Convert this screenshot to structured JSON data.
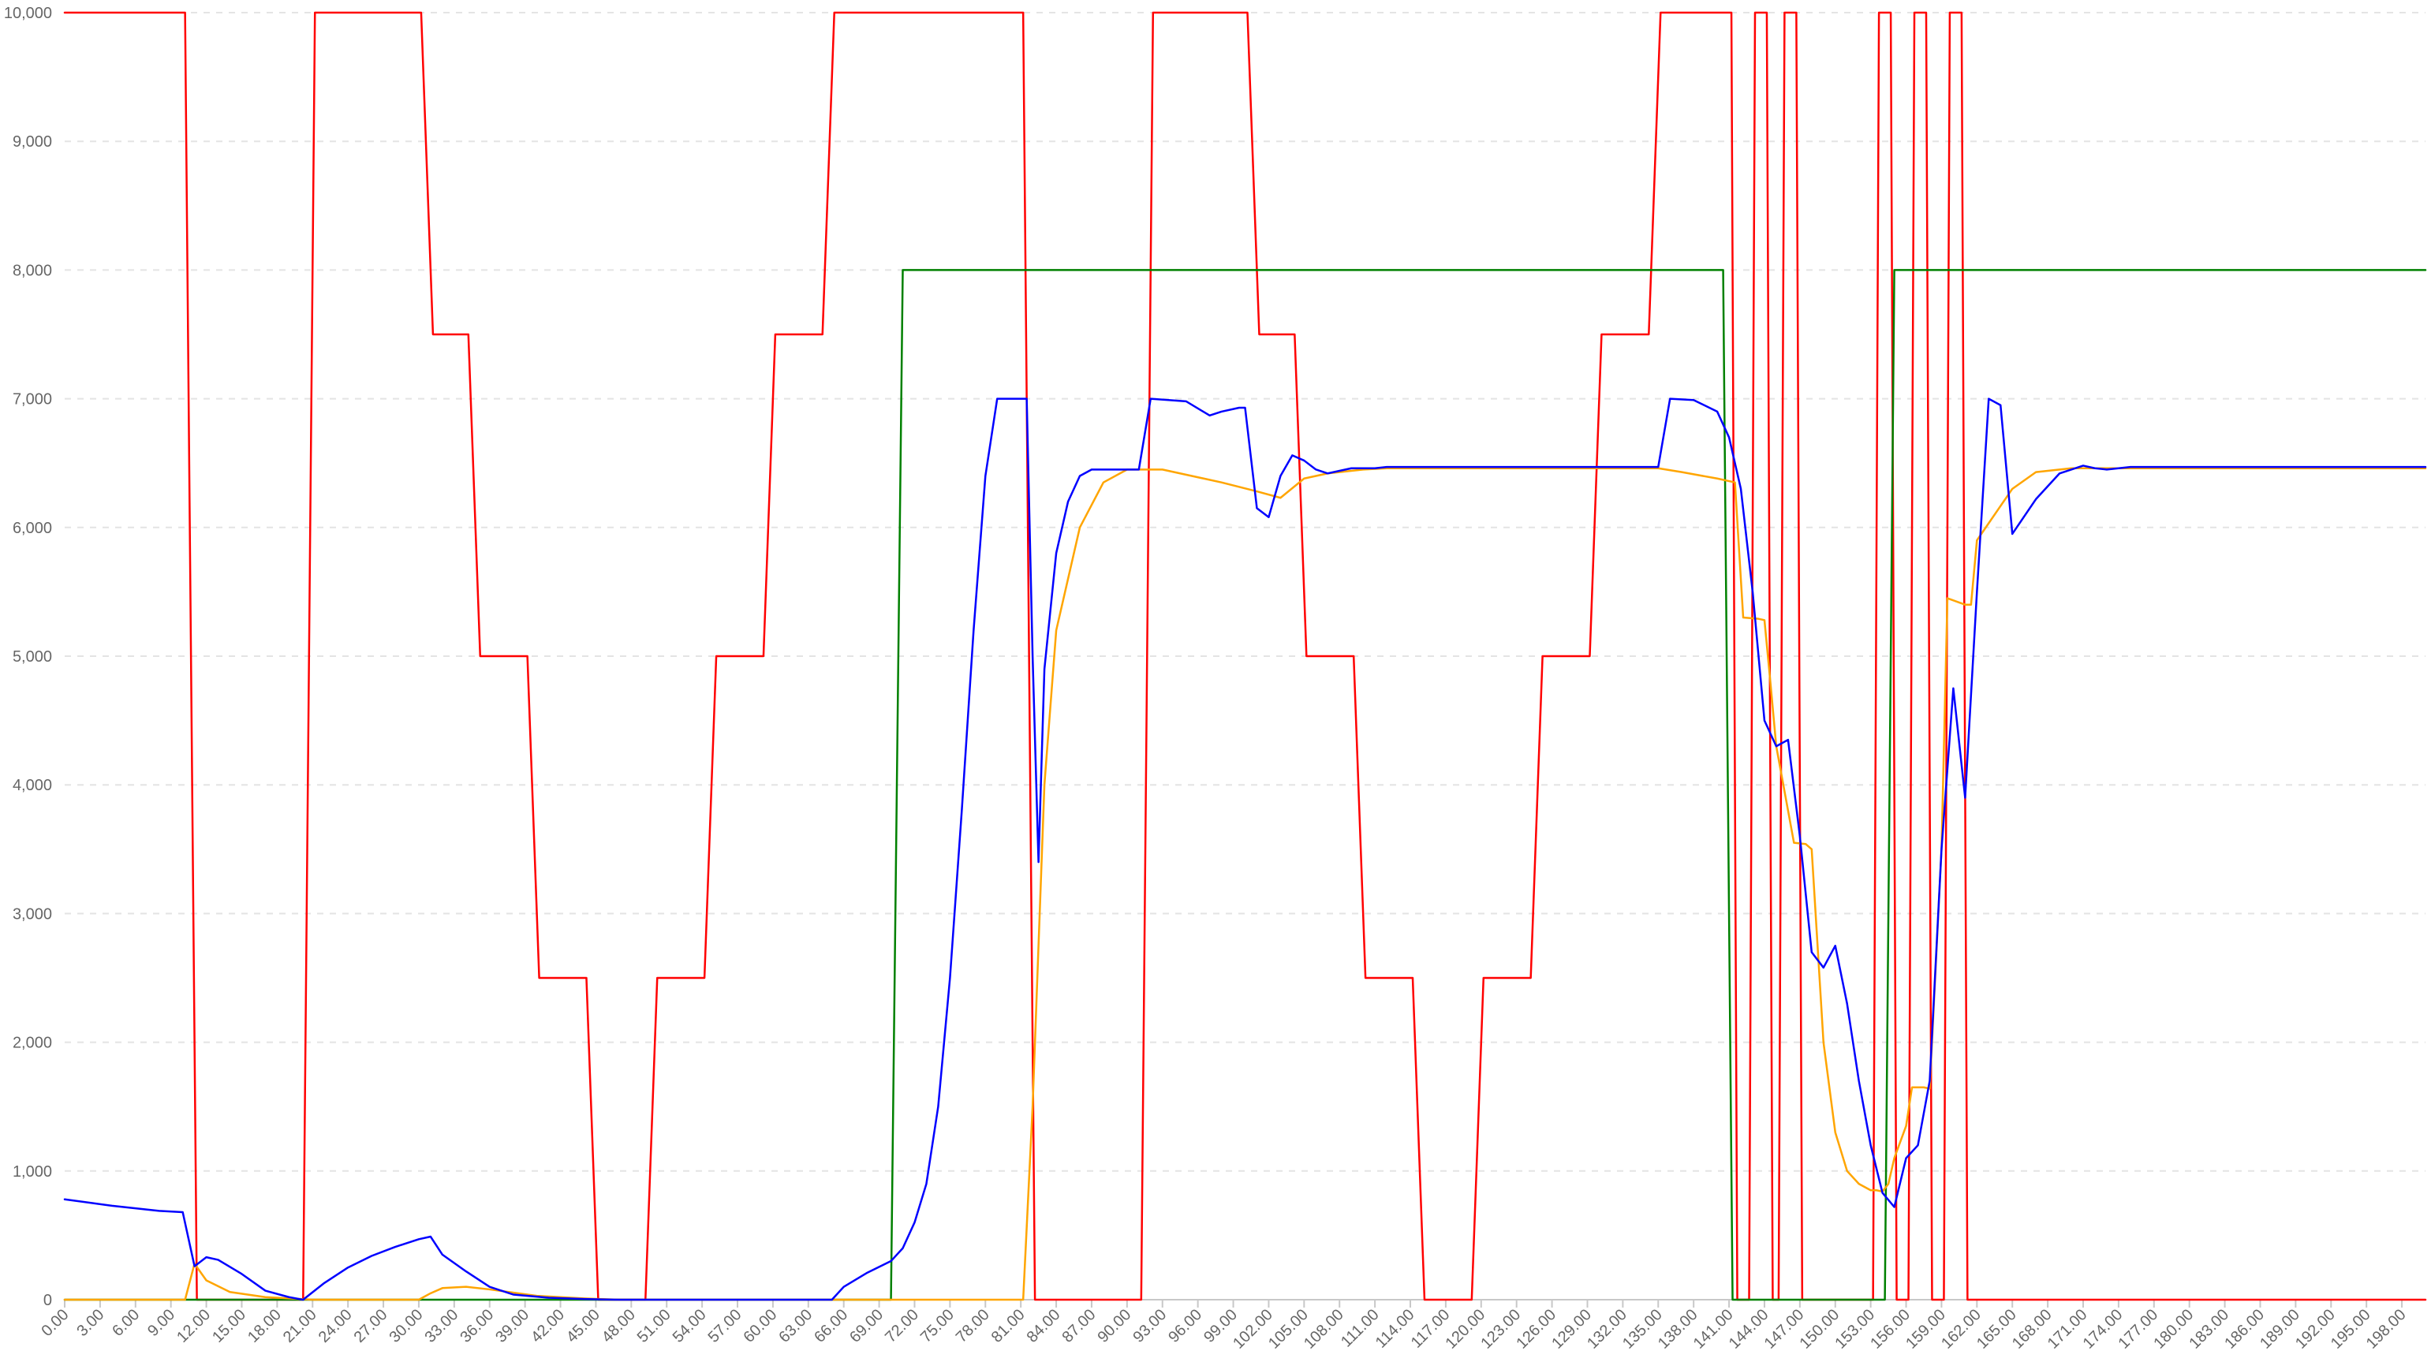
{
  "chart_data": {
    "type": "line",
    "title": "",
    "xlabel": "",
    "ylabel": "",
    "xlim": [
      0,
      200
    ],
    "ylim": [
      0,
      10000
    ],
    "grid": true,
    "legend": "none",
    "y_ticks": [
      0,
      1000,
      2000,
      3000,
      4000,
      5000,
      6000,
      7000,
      8000,
      9000,
      10000
    ],
    "y_tick_labels": [
      "0",
      "1,000",
      "2,000",
      "3,000",
      "4,000",
      "5,000",
      "6,000",
      "7,000",
      "8,000",
      "9,000",
      "10,000"
    ],
    "x_ticks": [
      0,
      3,
      6,
      9,
      12,
      15,
      18,
      21,
      24,
      27,
      30,
      33,
      36,
      39,
      42,
      45,
      48,
      51,
      54,
      57,
      60,
      63,
      66,
      69,
      72,
      75,
      78,
      81,
      84,
      87,
      90,
      93,
      96,
      99,
      102,
      105,
      108,
      111,
      114,
      117,
      120,
      123,
      126,
      129,
      132,
      135,
      138,
      141,
      144,
      147,
      150,
      153,
      156,
      159,
      162,
      165,
      168,
      171,
      174,
      177,
      180,
      183,
      186,
      189,
      192,
      195,
      198
    ],
    "x_tick_labels": [
      "0.00",
      "3.00",
      "6.00",
      "9.00",
      "12.00",
      "15.00",
      "18.00",
      "21.00",
      "24.00",
      "27.00",
      "30.00",
      "33.00",
      "36.00",
      "39.00",
      "42.00",
      "45.00",
      "48.00",
      "51.00",
      "54.00",
      "57.00",
      "60.00",
      "63.00",
      "66.00",
      "69.00",
      "72.00",
      "75.00",
      "78.00",
      "81.00",
      "84.00",
      "87.00",
      "90.00",
      "93.00",
      "96.00",
      "99.00",
      "102.00",
      "105.00",
      "108.00",
      "111.00",
      "114.00",
      "117.00",
      "120.00",
      "123.00",
      "126.00",
      "129.00",
      "132.00",
      "135.00",
      "138.00",
      "141.00",
      "144.00",
      "147.00",
      "150.00",
      "153.00",
      "156.00",
      "159.00",
      "162.00",
      "165.00",
      "168.00",
      "171.00",
      "174.00",
      "177.00",
      "180.00",
      "183.00",
      "186.00",
      "189.00",
      "192.00",
      "195.00",
      "198.00"
    ],
    "series": [
      {
        "color": "#ff0000",
        "points": [
          [
            0,
            10000
          ],
          [
            10.2,
            10000
          ],
          [
            11.2,
            0
          ],
          [
            20.2,
            0
          ],
          [
            21.2,
            10000
          ],
          [
            30.2,
            10000
          ],
          [
            31.2,
            7500
          ],
          [
            34.2,
            7500
          ],
          [
            35.2,
            5000
          ],
          [
            39.2,
            5000
          ],
          [
            40.2,
            2500
          ],
          [
            44.2,
            2500
          ],
          [
            45.2,
            0
          ],
          [
            49.2,
            0
          ],
          [
            50.2,
            2500
          ],
          [
            54.2,
            2500
          ],
          [
            55.2,
            5000
          ],
          [
            59.2,
            5000
          ],
          [
            60.2,
            7500
          ],
          [
            64.2,
            7500
          ],
          [
            65.2,
            10000
          ],
          [
            81.2,
            10000
          ],
          [
            82.2,
            0
          ],
          [
            91.2,
            0
          ],
          [
            92.2,
            10000
          ],
          [
            100.2,
            10000
          ],
          [
            101.2,
            7500
          ],
          [
            104.2,
            7500
          ],
          [
            105.2,
            5000
          ],
          [
            109.2,
            5000
          ],
          [
            110.2,
            2500
          ],
          [
            114.2,
            2500
          ],
          [
            115.2,
            0
          ],
          [
            119.2,
            0
          ],
          [
            120.2,
            2500
          ],
          [
            124.2,
            2500
          ],
          [
            125.2,
            5000
          ],
          [
            129.2,
            5000
          ],
          [
            130.2,
            7500
          ],
          [
            134.2,
            7500
          ],
          [
            135.2,
            10000
          ],
          [
            141.2,
            10000
          ],
          [
            141.7,
            0
          ],
          [
            142.7,
            0
          ],
          [
            143.2,
            10000
          ],
          [
            144.2,
            10000
          ],
          [
            144.7,
            0
          ],
          [
            145.2,
            0
          ],
          [
            145.7,
            10000
          ],
          [
            146.7,
            10000
          ],
          [
            147.2,
            0
          ],
          [
            153.2,
            0
          ],
          [
            153.7,
            10000
          ],
          [
            154.7,
            10000
          ],
          [
            155.2,
            0
          ],
          [
            156.2,
            0
          ],
          [
            156.7,
            10000
          ],
          [
            157.7,
            10000
          ],
          [
            158.2,
            0
          ],
          [
            159.2,
            0
          ],
          [
            159.7,
            10000
          ],
          [
            160.7,
            10000
          ],
          [
            161.2,
            0
          ],
          [
            200,
            0
          ]
        ]
      },
      {
        "color": "#008000",
        "points": [
          [
            0,
            0
          ],
          [
            70,
            0
          ],
          [
            71,
            8000
          ],
          [
            140,
            8000
          ],
          [
            140.5,
            8000
          ],
          [
            141.3,
            0
          ],
          [
            154.2,
            0
          ],
          [
            155,
            8000
          ],
          [
            200,
            8000
          ]
        ]
      },
      {
        "color": "#ffa500",
        "points": [
          [
            0,
            0
          ],
          [
            10.2,
            0
          ],
          [
            11,
            280
          ],
          [
            12,
            150
          ],
          [
            14,
            60
          ],
          [
            17,
            20
          ],
          [
            20,
            5
          ],
          [
            21,
            0
          ],
          [
            30,
            0
          ],
          [
            31,
            50
          ],
          [
            32,
            90
          ],
          [
            34,
            100
          ],
          [
            36,
            80
          ],
          [
            40,
            30
          ],
          [
            44,
            10
          ],
          [
            47,
            0
          ],
          [
            81.2,
            0
          ],
          [
            82,
            1500
          ],
          [
            83,
            4000
          ],
          [
            84,
            5200
          ],
          [
            86,
            6000
          ],
          [
            88,
            6350
          ],
          [
            90,
            6450
          ],
          [
            92,
            6450
          ],
          [
            93,
            6450
          ],
          [
            98,
            6350
          ],
          [
            101,
            6280
          ],
          [
            103,
            6230
          ],
          [
            105,
            6380
          ],
          [
            107,
            6420
          ],
          [
            110,
            6450
          ],
          [
            112,
            6460
          ],
          [
            135,
            6460
          ],
          [
            137,
            6430
          ],
          [
            140,
            6380
          ],
          [
            141.5,
            6350
          ],
          [
            142.2,
            5300
          ],
          [
            143.5,
            5290
          ],
          [
            144,
            5280
          ],
          [
            144.5,
            4800
          ],
          [
            145,
            4300
          ],
          [
            146.5,
            3550
          ],
          [
            147.5,
            3540
          ],
          [
            148,
            3500
          ],
          [
            149,
            2000
          ],
          [
            150,
            1300
          ],
          [
            151,
            1000
          ],
          [
            152,
            900
          ],
          [
            153,
            850
          ],
          [
            153.5,
            850
          ],
          [
            154,
            840
          ],
          [
            154.5,
            900
          ],
          [
            155,
            1100
          ],
          [
            156,
            1350
          ],
          [
            156.5,
            1650
          ],
          [
            157.5,
            1650
          ],
          [
            158,
            1640
          ],
          [
            159,
            3500
          ],
          [
            159.5,
            5450
          ],
          [
            161,
            5400
          ],
          [
            161.5,
            5400
          ],
          [
            162,
            5900
          ],
          [
            165,
            6300
          ],
          [
            167,
            6430
          ],
          [
            170,
            6460
          ],
          [
            200,
            6460
          ]
        ]
      },
      {
        "color": "#0000ff",
        "points": [
          [
            0,
            780
          ],
          [
            4,
            730
          ],
          [
            8,
            690
          ],
          [
            10,
            680
          ],
          [
            11,
            260
          ],
          [
            12,
            330
          ],
          [
            13,
            310
          ],
          [
            15,
            200
          ],
          [
            17,
            70
          ],
          [
            19,
            20
          ],
          [
            20.2,
            0
          ],
          [
            22,
            130
          ],
          [
            24,
            250
          ],
          [
            26,
            340
          ],
          [
            28,
            410
          ],
          [
            30,
            470
          ],
          [
            31,
            490
          ],
          [
            32,
            350
          ],
          [
            34,
            220
          ],
          [
            36,
            100
          ],
          [
            38,
            40
          ],
          [
            41,
            15
          ],
          [
            44,
            5
          ],
          [
            47,
            0
          ],
          [
            65,
            0
          ],
          [
            66,
            100
          ],
          [
            68,
            210
          ],
          [
            70,
            300
          ],
          [
            71,
            400
          ],
          [
            72,
            600
          ],
          [
            73,
            900
          ],
          [
            74,
            1500
          ],
          [
            75,
            2500
          ],
          [
            76,
            3800
          ],
          [
            77,
            5200
          ],
          [
            78,
            6400
          ],
          [
            79,
            7000
          ],
          [
            81,
            7000
          ],
          [
            81.5,
            7000
          ],
          [
            82,
            5000
          ],
          [
            82.5,
            3400
          ],
          [
            83,
            4900
          ],
          [
            84,
            5800
          ],
          [
            85,
            6200
          ],
          [
            86,
            6400
          ],
          [
            87,
            6450
          ],
          [
            91,
            6450
          ],
          [
            92,
            7000
          ],
          [
            95,
            6980
          ],
          [
            97,
            6870
          ],
          [
            98,
            6900
          ],
          [
            99.5,
            6930
          ],
          [
            100,
            6930
          ],
          [
            101,
            6150
          ],
          [
            102,
            6080
          ],
          [
            103,
            6400
          ],
          [
            104,
            6560
          ],
          [
            105,
            6520
          ],
          [
            106,
            6450
          ],
          [
            107,
            6420
          ],
          [
            109,
            6460
          ],
          [
            111,
            6460
          ],
          [
            112,
            6470
          ],
          [
            135,
            6470
          ],
          [
            136,
            7000
          ],
          [
            138,
            6990
          ],
          [
            140,
            6900
          ],
          [
            141,
            6700
          ],
          [
            142,
            6300
          ],
          [
            143,
            5500
          ],
          [
            144,
            4500
          ],
          [
            145,
            4300
          ],
          [
            146,
            4350
          ],
          [
            147,
            3600
          ],
          [
            148,
            2700
          ],
          [
            149,
            2580
          ],
          [
            150,
            2750
          ],
          [
            151,
            2300
          ],
          [
            152,
            1700
          ],
          [
            153,
            1200
          ],
          [
            154,
            830
          ],
          [
            155,
            720
          ],
          [
            156,
            1100
          ],
          [
            157,
            1200
          ],
          [
            158,
            1700
          ],
          [
            159,
            3500
          ],
          [
            160,
            4750
          ],
          [
            161,
            3900
          ],
          [
            162,
            5500
          ],
          [
            163,
            7000
          ],
          [
            164,
            6950
          ],
          [
            165,
            5950
          ],
          [
            167,
            6220
          ],
          [
            169,
            6420
          ],
          [
            171,
            6480
          ],
          [
            172,
            6460
          ],
          [
            173,
            6450
          ],
          [
            175,
            6470
          ],
          [
            200,
            6470
          ]
        ]
      }
    ]
  }
}
